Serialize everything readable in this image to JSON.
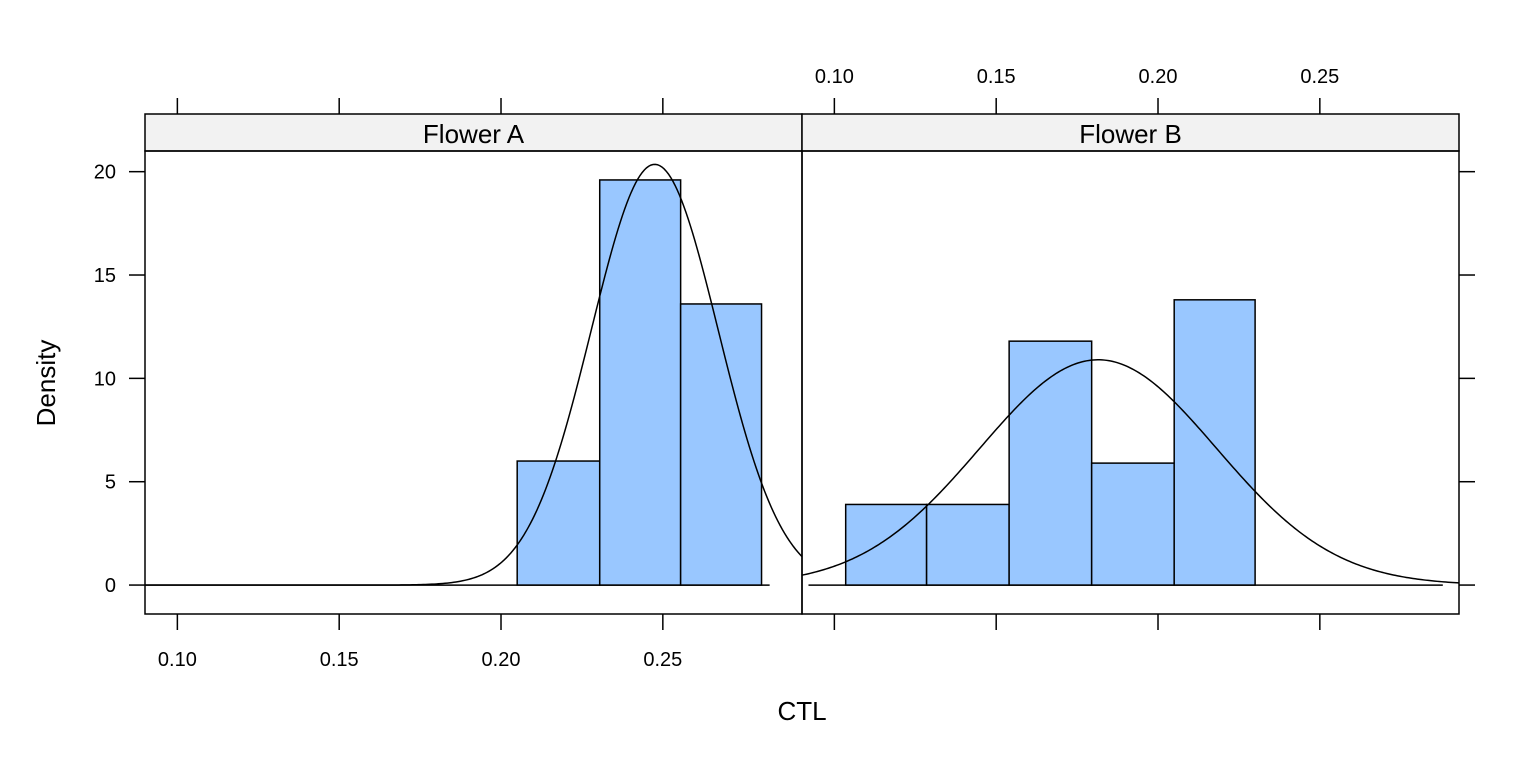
{
  "chart_data": {
    "type": "histogram",
    "xlabel": "CTL",
    "ylabel": "Density",
    "xlim": [
      0.09,
      0.293
    ],
    "ylim": [
      -1.4,
      21
    ],
    "x_ticks": [
      0.1,
      0.15,
      0.2,
      0.25
    ],
    "x_tick_labels": [
      "0.10",
      "0.15",
      "0.20",
      "0.25"
    ],
    "y_ticks": [
      0,
      5,
      10,
      15,
      20
    ],
    "y_tick_labels": [
      "0",
      "5",
      "10",
      "15",
      "20"
    ],
    "colors": {
      "bar_fill": "#99c7ff",
      "strip_bg": "#f2f2f2",
      "line": "#000000"
    },
    "panels": [
      {
        "strip": "Flower A",
        "bin_edges": [
          0.205,
          0.2305,
          0.2555,
          0.2805
        ],
        "densities": [
          6.0,
          19.6,
          13.6
        ],
        "baseline": [
          0.09,
          0.283
        ],
        "density_curve": {
          "mean": 0.2475,
          "sd": 0.0196
        }
      },
      {
        "strip": "Flower B",
        "bin_edges": [
          0.1035,
          0.1285,
          0.154,
          0.1795,
          0.205,
          0.23
        ],
        "densities": [
          3.9,
          3.9,
          11.8,
          5.9,
          13.8
        ],
        "baseline": [
          0.092,
          0.288
        ],
        "density_curve": {
          "mean": 0.1815,
          "sd": 0.0366
        }
      }
    ]
  }
}
